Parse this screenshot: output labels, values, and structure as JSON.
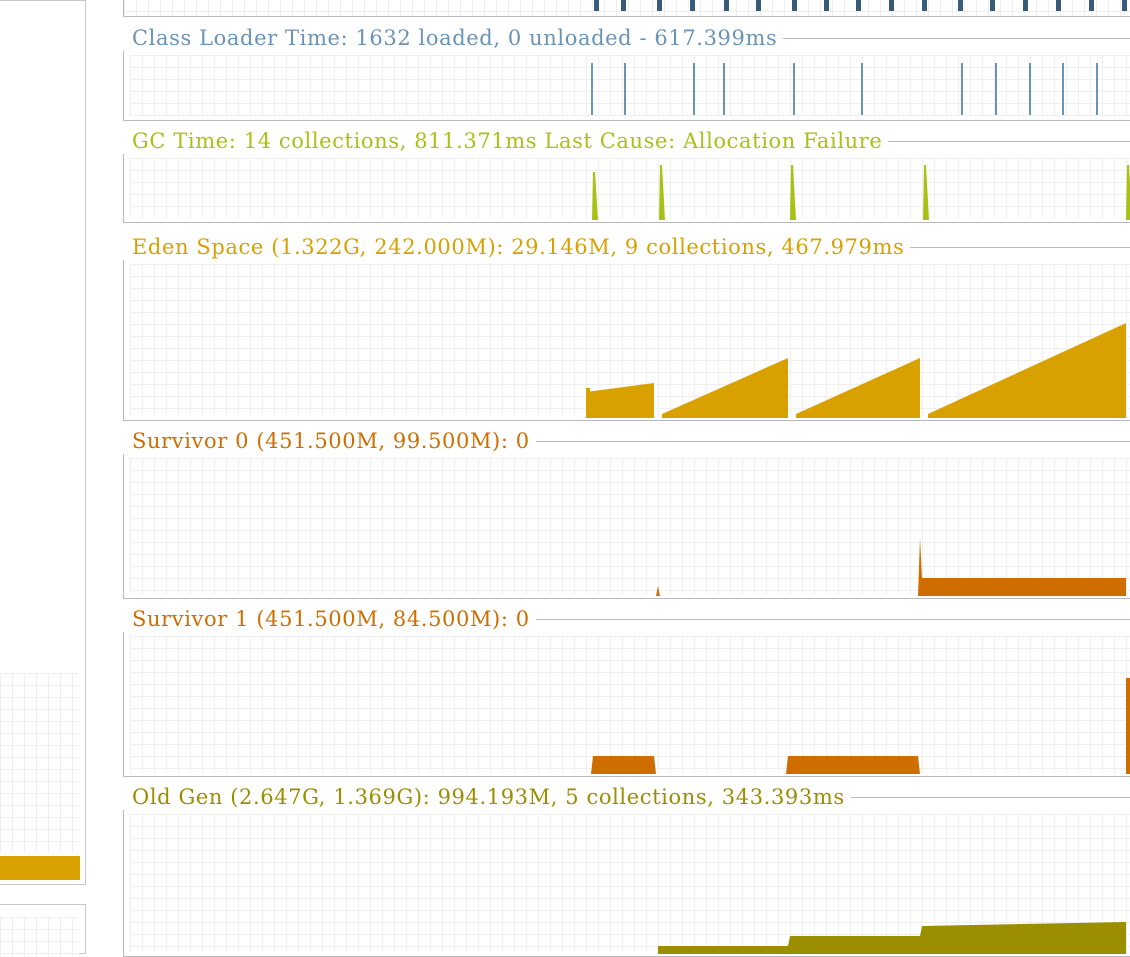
{
  "colors": {
    "thread_marks": "#395a78",
    "class_loader": "#6b93b5",
    "gc": "#a9c114",
    "eden": "#d8a100",
    "survivor": "#cf6e00",
    "old_gen": "#9b8e00",
    "side_bar": "#d8a100",
    "grid": "#efefef",
    "border": "#b9b9b9"
  },
  "panels": {
    "class_loader": {
      "title": "Class Loader Time: 1632 loaded, 0 unloaded - 617.399ms"
    },
    "gc_time": {
      "title": "GC Time: 14 collections, 811.371ms Last Cause: Allocation Failure"
    },
    "eden": {
      "title": "Eden Space (1.322G, 242.000M): 29.146M, 9 collections, 467.979ms"
    },
    "survivor0": {
      "title": "Survivor 0 (451.500M, 99.500M): 0"
    },
    "survivor1": {
      "title": "Survivor 1 (451.500M, 84.500M): 0"
    },
    "old_gen": {
      "title": "Old Gen (2.647G, 1.369G): 994.193M, 5 collections, 343.393ms"
    }
  }
}
